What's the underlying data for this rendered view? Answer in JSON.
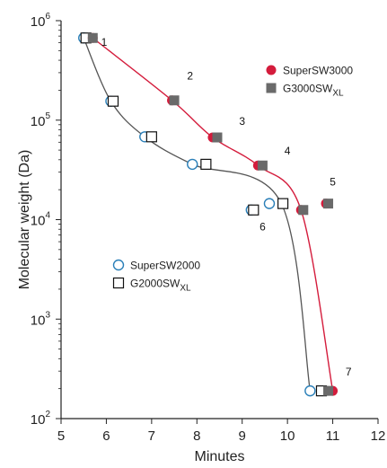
{
  "chart_data": {
    "type": "scatter",
    "xlabel": "Minutes",
    "ylabel": "Molecular weight (Da)",
    "xlim": [
      5,
      12
    ],
    "ylim": [
      100,
      1000000
    ],
    "yscale": "log",
    "grid": false,
    "x_ticks": [
      "5",
      "6",
      "7",
      "8",
      "9",
      "10",
      "11",
      "12"
    ],
    "y_ticks": [
      {
        "base": "10",
        "exp": "2"
      },
      {
        "base": "10",
        "exp": "3"
      },
      {
        "base": "10",
        "exp": "4"
      },
      {
        "base": "10",
        "exp": "5"
      },
      {
        "base": "10",
        "exp": "6"
      }
    ],
    "series": [
      {
        "name": "SuperSW3000",
        "marker": "filled-circle",
        "color": "#d41c3c",
        "curve_color": "#d41c3c",
        "points": [
          {
            "x": 5.7,
            "y": 670000
          },
          {
            "x": 7.45,
            "y": 158000
          },
          {
            "x": 8.35,
            "y": 67000
          },
          {
            "x": 9.35,
            "y": 35000
          },
          {
            "x": 10.3,
            "y": 12500
          },
          {
            "x": 10.85,
            "y": 14500
          },
          {
            "x": 11.0,
            "y": 190
          }
        ]
      },
      {
        "name": "G3000SW",
        "name_sub": "XL",
        "marker": "filled-square",
        "color": "#6a6a6a",
        "points": [
          {
            "x": 5.7,
            "y": 670000
          },
          {
            "x": 7.5,
            "y": 158000
          },
          {
            "x": 8.45,
            "y": 67000
          },
          {
            "x": 9.45,
            "y": 35000
          },
          {
            "x": 10.35,
            "y": 12500
          },
          {
            "x": 10.9,
            "y": 14500
          },
          {
            "x": 10.9,
            "y": 190
          }
        ]
      },
      {
        "name": "SuperSW2000",
        "marker": "open-circle",
        "color": "#2a7fb8",
        "curve_color": "#555555",
        "points": [
          {
            "x": 5.5,
            "y": 670000
          },
          {
            "x": 6.1,
            "y": 155000
          },
          {
            "x": 6.85,
            "y": 68000
          },
          {
            "x": 7.9,
            "y": 36000
          },
          {
            "x": 9.2,
            "y": 12500
          },
          {
            "x": 9.6,
            "y": 14500
          },
          {
            "x": 10.5,
            "y": 190
          }
        ]
      },
      {
        "name": "G2000SW",
        "name_sub": "XL",
        "marker": "open-square",
        "color": "#111111",
        "points": [
          {
            "x": 5.55,
            "y": 670000
          },
          {
            "x": 6.15,
            "y": 155000
          },
          {
            "x": 7.0,
            "y": 68000
          },
          {
            "x": 8.2,
            "y": 36000
          },
          {
            "x": 9.25,
            "y": 12500
          },
          {
            "x": 9.9,
            "y": 14500
          },
          {
            "x": 10.75,
            "y": 190
          }
        ]
      }
    ],
    "annotations": [
      {
        "text": "1",
        "x": 5.95,
        "y": 560000
      },
      {
        "text": "2",
        "x": 7.85,
        "y": 255000
      },
      {
        "text": "3",
        "x": 9.0,
        "y": 90000
      },
      {
        "text": "4",
        "x": 10.0,
        "y": 45000
      },
      {
        "text": "5",
        "x": 11.0,
        "y": 22000
      },
      {
        "text": "6",
        "x": 9.45,
        "y": 7800
      },
      {
        "text": "7",
        "x": 11.35,
        "y": 270
      }
    ]
  }
}
